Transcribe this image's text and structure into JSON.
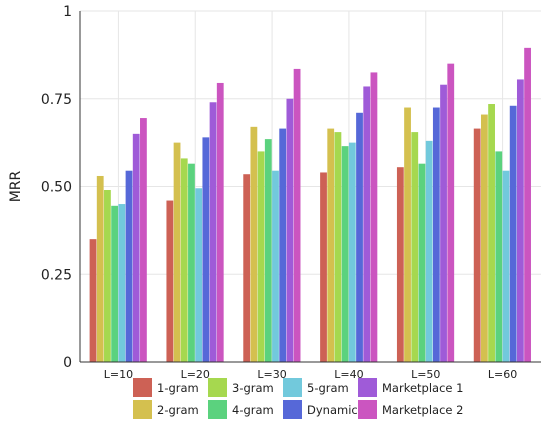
{
  "chart_data": {
    "type": "bar",
    "ylabel": "MRR",
    "xlabel": "",
    "title": "",
    "ylim": [
      0,
      1
    ],
    "yticks": [
      0,
      0.25,
      0.5,
      0.75,
      1
    ],
    "ytick_labels": [
      "0",
      "0.25",
      "0.50",
      "0.75",
      "1"
    ],
    "grid": true,
    "legend_position": "bottom",
    "categories": [
      "L=10",
      "L=20",
      "L=30",
      "L=40",
      "L=50",
      "L=60"
    ],
    "series": [
      {
        "name": "1-gram",
        "color": "#cd6155",
        "values": [
          0.35,
          0.46,
          0.535,
          0.54,
          0.555,
          0.665
        ]
      },
      {
        "name": "2-gram",
        "color": "#d4c04f",
        "values": [
          0.53,
          0.625,
          0.67,
          0.665,
          0.725,
          0.705
        ]
      },
      {
        "name": "3-gram",
        "color": "#a6d84f",
        "values": [
          0.49,
          0.58,
          0.6,
          0.655,
          0.655,
          0.735
        ]
      },
      {
        "name": "4-gram",
        "color": "#5bd27e",
        "values": [
          0.445,
          0.565,
          0.635,
          0.615,
          0.565,
          0.6
        ]
      },
      {
        "name": "5-gram",
        "color": "#72c9dc",
        "values": [
          0.45,
          0.495,
          0.545,
          0.625,
          0.63,
          0.545
        ]
      },
      {
        "name": "Dynamic",
        "color": "#5668d8",
        "values": [
          0.545,
          0.64,
          0.665,
          0.71,
          0.725,
          0.73
        ]
      },
      {
        "name": "Marketplace 1",
        "color": "#9f5bd8",
        "values": [
          0.65,
          0.74,
          0.75,
          0.785,
          0.79,
          0.805
        ]
      },
      {
        "name": "Marketplace 2",
        "color": "#cb55c0",
        "values": [
          0.695,
          0.795,
          0.835,
          0.825,
          0.85,
          0.895
        ]
      }
    ]
  }
}
